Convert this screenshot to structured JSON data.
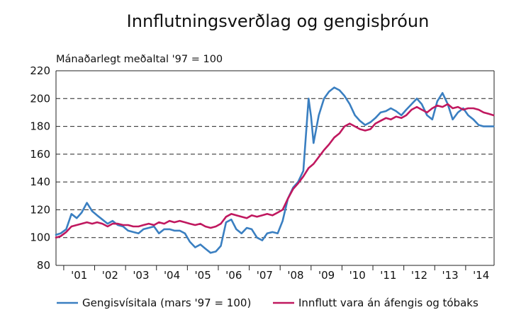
{
  "chart_data": {
    "type": "line",
    "title": "Innflutningsverðlag og gengisþróun",
    "ylabel": "Mánaðarlegt meðaltal '97 = 100",
    "xlabel": "",
    "ylim": [
      80,
      220
    ],
    "yticks": [
      80,
      100,
      120,
      140,
      160,
      180,
      200,
      220
    ],
    "xlim": [
      2000.75,
      2014.92
    ],
    "categories": [
      "'01",
      "'02",
      "'03",
      "'04",
      "'05",
      "'06",
      "'07",
      "'08",
      "'09",
      "'10",
      "'11",
      "'12",
      "'13",
      "'14"
    ],
    "grid": "horizontal dashed",
    "legend": "bottom",
    "series": [
      {
        "name": "Gengisvísitala (mars '97 = 100)",
        "color": "#3a7fc1",
        "points": [
          [
            2000.75,
            102
          ],
          [
            2000.9,
            103
          ],
          [
            2001.08,
            106
          ],
          [
            2001.25,
            117
          ],
          [
            2001.42,
            114
          ],
          [
            2001.58,
            118
          ],
          [
            2001.75,
            125
          ],
          [
            2001.92,
            119
          ],
          [
            2002.08,
            116
          ],
          [
            2002.25,
            113
          ],
          [
            2002.42,
            110
          ],
          [
            2002.58,
            112
          ],
          [
            2002.75,
            109
          ],
          [
            2002.92,
            108
          ],
          [
            2003.08,
            105
          ],
          [
            2003.25,
            104
          ],
          [
            2003.42,
            103
          ],
          [
            2003.58,
            106
          ],
          [
            2003.75,
            107
          ],
          [
            2003.92,
            108
          ],
          [
            2004.08,
            103
          ],
          [
            2004.25,
            106
          ],
          [
            2004.42,
            106
          ],
          [
            2004.58,
            105
          ],
          [
            2004.75,
            105
          ],
          [
            2004.92,
            103
          ],
          [
            2005.08,
            97
          ],
          [
            2005.25,
            93
          ],
          [
            2005.42,
            95
          ],
          [
            2005.58,
            92
          ],
          [
            2005.75,
            89
          ],
          [
            2005.92,
            90
          ],
          [
            2006.08,
            94
          ],
          [
            2006.25,
            111
          ],
          [
            2006.42,
            113
          ],
          [
            2006.58,
            106
          ],
          [
            2006.75,
            103
          ],
          [
            2006.92,
            107
          ],
          [
            2007.08,
            106
          ],
          [
            2007.25,
            100
          ],
          [
            2007.42,
            98
          ],
          [
            2007.58,
            103
          ],
          [
            2007.75,
            104
          ],
          [
            2007.92,
            103
          ],
          [
            2008.08,
            112
          ],
          [
            2008.25,
            128
          ],
          [
            2008.42,
            136
          ],
          [
            2008.58,
            140
          ],
          [
            2008.75,
            148
          ],
          [
            2008.92,
            200
          ],
          [
            2009.0,
            187
          ],
          [
            2009.08,
            168
          ],
          [
            2009.25,
            188
          ],
          [
            2009.42,
            200
          ],
          [
            2009.58,
            205
          ],
          [
            2009.75,
            208
          ],
          [
            2009.92,
            206
          ],
          [
            2010.08,
            202
          ],
          [
            2010.25,
            196
          ],
          [
            2010.42,
            188
          ],
          [
            2010.58,
            184
          ],
          [
            2010.75,
            181
          ],
          [
            2010.92,
            183
          ],
          [
            2011.08,
            186
          ],
          [
            2011.25,
            190
          ],
          [
            2011.42,
            191
          ],
          [
            2011.58,
            193
          ],
          [
            2011.75,
            191
          ],
          [
            2011.92,
            188
          ],
          [
            2012.08,
            192
          ],
          [
            2012.25,
            196
          ],
          [
            2012.42,
            200
          ],
          [
            2012.58,
            196
          ],
          [
            2012.75,
            188
          ],
          [
            2012.92,
            185
          ],
          [
            2013.08,
            198
          ],
          [
            2013.25,
            204
          ],
          [
            2013.42,
            196
          ],
          [
            2013.58,
            185
          ],
          [
            2013.75,
            190
          ],
          [
            2013.92,
            193
          ],
          [
            2014.08,
            188
          ],
          [
            2014.25,
            185
          ],
          [
            2014.42,
            181
          ],
          [
            2014.58,
            180
          ],
          [
            2014.75,
            180
          ],
          [
            2014.9,
            180
          ]
        ]
      },
      {
        "name": "Innflutt vara án áfengis og tóbaks",
        "color": "#c0185f",
        "points": [
          [
            2000.75,
            100
          ],
          [
            2000.9,
            101
          ],
          [
            2001.08,
            104
          ],
          [
            2001.25,
            108
          ],
          [
            2001.42,
            109
          ],
          [
            2001.58,
            110
          ],
          [
            2001.75,
            111
          ],
          [
            2001.92,
            110
          ],
          [
            2002.08,
            111
          ],
          [
            2002.25,
            110
          ],
          [
            2002.42,
            108
          ],
          [
            2002.58,
            110
          ],
          [
            2002.75,
            110
          ],
          [
            2002.92,
            109
          ],
          [
            2003.08,
            109
          ],
          [
            2003.25,
            108
          ],
          [
            2003.42,
            108
          ],
          [
            2003.58,
            109
          ],
          [
            2003.75,
            110
          ],
          [
            2003.92,
            109
          ],
          [
            2004.08,
            111
          ],
          [
            2004.25,
            110
          ],
          [
            2004.42,
            112
          ],
          [
            2004.58,
            111
          ],
          [
            2004.75,
            112
          ],
          [
            2004.92,
            111
          ],
          [
            2005.08,
            110
          ],
          [
            2005.25,
            109
          ],
          [
            2005.42,
            110
          ],
          [
            2005.58,
            108
          ],
          [
            2005.75,
            107
          ],
          [
            2005.92,
            108
          ],
          [
            2006.08,
            110
          ],
          [
            2006.25,
            115
          ],
          [
            2006.42,
            117
          ],
          [
            2006.58,
            116
          ],
          [
            2006.75,
            115
          ],
          [
            2006.92,
            114
          ],
          [
            2007.08,
            116
          ],
          [
            2007.25,
            115
          ],
          [
            2007.42,
            116
          ],
          [
            2007.58,
            117
          ],
          [
            2007.75,
            116
          ],
          [
            2007.92,
            118
          ],
          [
            2008.08,
            120
          ],
          [
            2008.25,
            128
          ],
          [
            2008.42,
            135
          ],
          [
            2008.58,
            139
          ],
          [
            2008.75,
            144
          ],
          [
            2008.92,
            150
          ],
          [
            2009.08,
            153
          ],
          [
            2009.25,
            158
          ],
          [
            2009.42,
            163
          ],
          [
            2009.58,
            167
          ],
          [
            2009.75,
            172
          ],
          [
            2009.92,
            175
          ],
          [
            2010.08,
            180
          ],
          [
            2010.25,
            182
          ],
          [
            2010.42,
            180
          ],
          [
            2010.58,
            178
          ],
          [
            2010.75,
            177
          ],
          [
            2010.92,
            178
          ],
          [
            2011.08,
            182
          ],
          [
            2011.25,
            184
          ],
          [
            2011.42,
            186
          ],
          [
            2011.58,
            185
          ],
          [
            2011.75,
            187
          ],
          [
            2011.92,
            186
          ],
          [
            2012.08,
            188
          ],
          [
            2012.25,
            192
          ],
          [
            2012.42,
            194
          ],
          [
            2012.58,
            192
          ],
          [
            2012.75,
            190
          ],
          [
            2012.92,
            193
          ],
          [
            2013.08,
            195
          ],
          [
            2013.25,
            194
          ],
          [
            2013.42,
            196
          ],
          [
            2013.58,
            193
          ],
          [
            2013.75,
            194
          ],
          [
            2013.92,
            192
          ],
          [
            2014.08,
            193
          ],
          [
            2014.25,
            193
          ],
          [
            2014.42,
            192
          ],
          [
            2014.58,
            190
          ],
          [
            2014.75,
            189
          ],
          [
            2014.9,
            188
          ]
        ]
      }
    ]
  }
}
